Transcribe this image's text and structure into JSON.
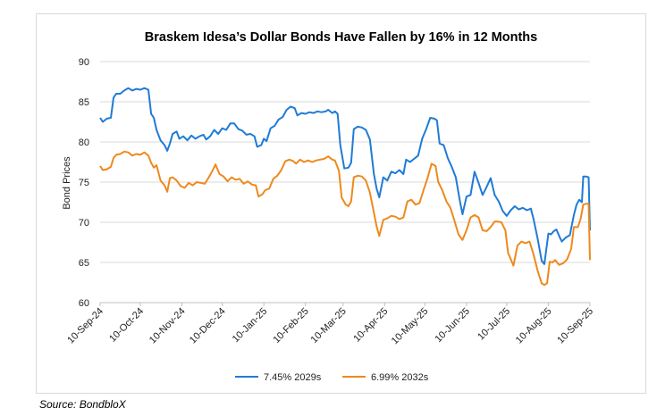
{
  "title": "Braskem Idesa’s Dollar Bonds Have Fallen by 16% in 12 Months",
  "source": "Source: BondbloX",
  "chart_data": {
    "type": "line",
    "title": "Braskem Idesa’s Dollar Bonds Have Fallen by 16% in 12 Months",
    "xlabel": "",
    "ylabel": "Bond Prices",
    "ylim": [
      60,
      90
    ],
    "yticks": [
      60,
      65,
      70,
      75,
      80,
      85,
      90
    ],
    "xlim": [
      "2024-09-10",
      "2025-09-10"
    ],
    "xticks": [
      "10-Sep-24",
      "10-Oct-24",
      "10-Nov-24",
      "10-Dec-24",
      "10-Jan-25",
      "10-Feb-25",
      "10-Mar-25",
      "10-Apr-25",
      "10-May-25",
      "10-Jun-25",
      "10-Jul-25",
      "10-Aug-25",
      "10-Sep-25"
    ],
    "grid": "horizontal",
    "legend": "bottom",
    "series": [
      {
        "name": "7.45% 2029s",
        "color": "#1f7bd6",
        "points": [
          [
            "2024-09-10",
            83.0
          ],
          [
            "2024-09-12",
            82.5
          ],
          [
            "2024-09-15",
            82.9
          ],
          [
            "2024-09-18",
            83.0
          ],
          [
            "2024-09-20",
            85.5
          ],
          [
            "2024-09-22",
            86.0
          ],
          [
            "2024-09-25",
            86.0
          ],
          [
            "2024-09-28",
            86.4
          ],
          [
            "2024-10-01",
            86.7
          ],
          [
            "2024-10-04",
            86.4
          ],
          [
            "2024-10-07",
            86.6
          ],
          [
            "2024-10-10",
            86.5
          ],
          [
            "2024-10-13",
            86.7
          ],
          [
            "2024-10-16",
            86.5
          ],
          [
            "2024-10-18",
            83.5
          ],
          [
            "2024-10-20",
            83.0
          ],
          [
            "2024-10-22",
            81.5
          ],
          [
            "2024-10-25",
            80.2
          ],
          [
            "2024-10-28",
            79.6
          ],
          [
            "2024-10-30",
            78.9
          ],
          [
            "2024-11-01",
            79.8
          ],
          [
            "2024-11-03",
            81.0
          ],
          [
            "2024-11-06",
            81.3
          ],
          [
            "2024-11-08",
            80.4
          ],
          [
            "2024-11-11",
            80.7
          ],
          [
            "2024-11-14",
            80.2
          ],
          [
            "2024-11-17",
            80.8
          ],
          [
            "2024-11-20",
            80.4
          ],
          [
            "2024-11-23",
            80.7
          ],
          [
            "2024-11-26",
            80.9
          ],
          [
            "2024-11-28",
            80.3
          ],
          [
            "2024-12-01",
            80.7
          ],
          [
            "2024-12-04",
            81.5
          ],
          [
            "2024-12-07",
            81.0
          ],
          [
            "2024-12-10",
            81.7
          ],
          [
            "2024-12-13",
            81.5
          ],
          [
            "2024-12-16",
            82.3
          ],
          [
            "2024-12-19",
            82.3
          ],
          [
            "2024-12-22",
            81.6
          ],
          [
            "2024-12-25",
            81.4
          ],
          [
            "2024-12-28",
            80.9
          ],
          [
            "2024-12-31",
            81.0
          ],
          [
            "2025-01-03",
            80.7
          ],
          [
            "2025-01-05",
            79.4
          ],
          [
            "2025-01-08",
            79.6
          ],
          [
            "2025-01-10",
            80.4
          ],
          [
            "2025-01-12",
            80.1
          ],
          [
            "2025-01-15",
            81.7
          ],
          [
            "2025-01-18",
            82.0
          ],
          [
            "2025-01-21",
            82.8
          ],
          [
            "2025-01-24",
            83.1
          ],
          [
            "2025-01-27",
            84.0
          ],
          [
            "2025-01-30",
            84.4
          ],
          [
            "2025-02-02",
            84.2
          ],
          [
            "2025-02-04",
            83.3
          ],
          [
            "2025-02-07",
            83.6
          ],
          [
            "2025-02-10",
            83.5
          ],
          [
            "2025-02-13",
            83.7
          ],
          [
            "2025-02-16",
            83.6
          ],
          [
            "2025-02-19",
            83.8
          ],
          [
            "2025-02-22",
            83.7
          ],
          [
            "2025-02-25",
            83.8
          ],
          [
            "2025-02-27",
            84.0
          ],
          [
            "2025-03-02",
            83.6
          ],
          [
            "2025-03-04",
            83.8
          ],
          [
            "2025-03-06",
            83.5
          ],
          [
            "2025-03-08",
            79.6
          ],
          [
            "2025-03-11",
            76.7
          ],
          [
            "2025-03-14",
            76.8
          ],
          [
            "2025-03-16",
            77.4
          ],
          [
            "2025-03-18",
            81.6
          ],
          [
            "2025-03-21",
            81.9
          ],
          [
            "2025-03-24",
            81.8
          ],
          [
            "2025-03-27",
            81.5
          ],
          [
            "2025-03-30",
            80.3
          ],
          [
            "2025-04-02",
            76.0
          ],
          [
            "2025-04-04",
            74.2
          ],
          [
            "2025-04-06",
            73.1
          ],
          [
            "2025-04-09",
            75.6
          ],
          [
            "2025-04-12",
            75.2
          ],
          [
            "2025-04-15",
            76.3
          ],
          [
            "2025-04-18",
            76.1
          ],
          [
            "2025-04-21",
            76.5
          ],
          [
            "2025-04-24",
            76.0
          ],
          [
            "2025-04-26",
            77.8
          ],
          [
            "2025-04-29",
            77.5
          ],
          [
            "2025-05-02",
            77.9
          ],
          [
            "2025-05-05",
            78.3
          ],
          [
            "2025-05-08",
            80.4
          ],
          [
            "2025-05-11",
            81.6
          ],
          [
            "2025-05-14",
            83.0
          ],
          [
            "2025-05-17",
            82.9
          ],
          [
            "2025-05-19",
            82.7
          ],
          [
            "2025-05-21",
            79.8
          ],
          [
            "2025-05-24",
            79.6
          ],
          [
            "2025-05-27",
            78.0
          ],
          [
            "2025-05-30",
            76.9
          ],
          [
            "2025-06-02",
            75.6
          ],
          [
            "2025-06-05",
            72.7
          ],
          [
            "2025-06-07",
            71.0
          ],
          [
            "2025-06-10",
            73.2
          ],
          [
            "2025-06-13",
            73.4
          ],
          [
            "2025-06-16",
            76.3
          ],
          [
            "2025-06-19",
            74.9
          ],
          [
            "2025-06-22",
            73.4
          ],
          [
            "2025-06-25",
            74.4
          ],
          [
            "2025-06-28",
            75.5
          ],
          [
            "2025-07-01",
            73.4
          ],
          [
            "2025-07-04",
            72.6
          ],
          [
            "2025-07-07",
            71.4
          ],
          [
            "2025-07-10",
            70.8
          ],
          [
            "2025-07-13",
            71.5
          ],
          [
            "2025-07-16",
            72.0
          ],
          [
            "2025-07-19",
            71.6
          ],
          [
            "2025-07-22",
            71.8
          ],
          [
            "2025-07-25",
            71.5
          ],
          [
            "2025-07-28",
            71.7
          ],
          [
            "2025-07-30",
            70.4
          ],
          [
            "2025-08-02",
            68.0
          ],
          [
            "2025-08-05",
            65.2
          ],
          [
            "2025-08-07",
            64.8
          ],
          [
            "2025-08-10",
            68.6
          ],
          [
            "2025-08-12",
            68.5
          ],
          [
            "2025-08-14",
            68.9
          ],
          [
            "2025-08-16",
            69.1
          ],
          [
            "2025-08-18",
            68.3
          ],
          [
            "2025-08-20",
            67.6
          ],
          [
            "2025-08-23",
            68.1
          ],
          [
            "2025-08-26",
            68.4
          ],
          [
            "2025-08-29",
            70.9
          ],
          [
            "2025-08-31",
            72.2
          ],
          [
            "2025-09-02",
            72.8
          ],
          [
            "2025-09-04",
            72.5
          ],
          [
            "2025-09-05",
            75.7
          ],
          [
            "2025-09-07",
            75.7
          ],
          [
            "2025-09-09",
            75.6
          ],
          [
            "2025-09-10",
            69.0
          ]
        ]
      },
      {
        "name": "6.99% 2032s",
        "color": "#ed8a1d",
        "points": [
          [
            "2024-09-10",
            77.0
          ],
          [
            "2024-09-12",
            76.5
          ],
          [
            "2024-09-15",
            76.6
          ],
          [
            "2024-09-18",
            76.9
          ],
          [
            "2024-09-20",
            78.0
          ],
          [
            "2024-09-22",
            78.4
          ],
          [
            "2024-09-25",
            78.5
          ],
          [
            "2024-09-28",
            78.8
          ],
          [
            "2024-10-01",
            78.7
          ],
          [
            "2024-10-04",
            78.3
          ],
          [
            "2024-10-07",
            78.5
          ],
          [
            "2024-10-10",
            78.4
          ],
          [
            "2024-10-13",
            78.7
          ],
          [
            "2024-10-16",
            78.3
          ],
          [
            "2024-10-18",
            77.4
          ],
          [
            "2024-10-20",
            76.8
          ],
          [
            "2024-10-22",
            77.1
          ],
          [
            "2024-10-25",
            75.2
          ],
          [
            "2024-10-28",
            74.6
          ],
          [
            "2024-10-30",
            73.8
          ],
          [
            "2024-11-01",
            75.5
          ],
          [
            "2024-11-03",
            75.6
          ],
          [
            "2024-11-06",
            75.2
          ],
          [
            "2024-11-09",
            74.5
          ],
          [
            "2024-11-12",
            74.3
          ],
          [
            "2024-11-15",
            74.9
          ],
          [
            "2024-11-18",
            74.6
          ],
          [
            "2024-11-21",
            75.0
          ],
          [
            "2024-11-24",
            74.9
          ],
          [
            "2024-11-27",
            74.8
          ],
          [
            "2024-11-30",
            75.6
          ],
          [
            "2024-12-03",
            76.5
          ],
          [
            "2024-12-05",
            77.2
          ],
          [
            "2024-12-08",
            76.0
          ],
          [
            "2024-12-11",
            75.7
          ],
          [
            "2024-12-14",
            75.1
          ],
          [
            "2024-12-17",
            75.6
          ],
          [
            "2024-12-20",
            75.3
          ],
          [
            "2024-12-23",
            75.4
          ],
          [
            "2024-12-26",
            74.8
          ],
          [
            "2024-12-29",
            75.1
          ],
          [
            "2025-01-01",
            74.7
          ],
          [
            "2025-01-04",
            74.6
          ],
          [
            "2025-01-06",
            73.2
          ],
          [
            "2025-01-09",
            73.5
          ],
          [
            "2025-01-11",
            74.0
          ],
          [
            "2025-01-14",
            74.2
          ],
          [
            "2025-01-17",
            75.4
          ],
          [
            "2025-01-20",
            75.8
          ],
          [
            "2025-01-23",
            76.5
          ],
          [
            "2025-01-26",
            77.6
          ],
          [
            "2025-01-29",
            77.8
          ],
          [
            "2025-02-01",
            77.6
          ],
          [
            "2025-02-03",
            77.3
          ],
          [
            "2025-02-06",
            77.8
          ],
          [
            "2025-02-09",
            77.5
          ],
          [
            "2025-02-12",
            77.7
          ],
          [
            "2025-02-15",
            77.5
          ],
          [
            "2025-02-18",
            77.7
          ],
          [
            "2025-02-21",
            77.8
          ],
          [
            "2025-02-24",
            77.9
          ],
          [
            "2025-02-27",
            78.2
          ],
          [
            "2025-03-02",
            77.8
          ],
          [
            "2025-03-04",
            77.7
          ],
          [
            "2025-03-07",
            76.4
          ],
          [
            "2025-03-09",
            73.1
          ],
          [
            "2025-03-12",
            72.2
          ],
          [
            "2025-03-14",
            72.0
          ],
          [
            "2025-03-16",
            72.6
          ],
          [
            "2025-03-18",
            75.6
          ],
          [
            "2025-03-21",
            75.8
          ],
          [
            "2025-03-24",
            75.7
          ],
          [
            "2025-03-27",
            75.2
          ],
          [
            "2025-03-30",
            73.7
          ],
          [
            "2025-04-02",
            71.2
          ],
          [
            "2025-04-04",
            69.5
          ],
          [
            "2025-04-06",
            68.3
          ],
          [
            "2025-04-09",
            70.3
          ],
          [
            "2025-04-12",
            70.5
          ],
          [
            "2025-04-15",
            70.8
          ],
          [
            "2025-04-18",
            70.7
          ],
          [
            "2025-04-21",
            70.4
          ],
          [
            "2025-04-24",
            70.6
          ],
          [
            "2025-04-27",
            72.6
          ],
          [
            "2025-04-30",
            72.8
          ],
          [
            "2025-05-03",
            72.2
          ],
          [
            "2025-05-06",
            72.4
          ],
          [
            "2025-05-09",
            74.0
          ],
          [
            "2025-05-12",
            75.5
          ],
          [
            "2025-05-15",
            77.3
          ],
          [
            "2025-05-18",
            77.0
          ],
          [
            "2025-05-20",
            75.0
          ],
          [
            "2025-05-23",
            74.0
          ],
          [
            "2025-05-26",
            72.6
          ],
          [
            "2025-05-29",
            71.8
          ],
          [
            "2025-06-01",
            70.2
          ],
          [
            "2025-06-04",
            68.5
          ],
          [
            "2025-06-07",
            67.8
          ],
          [
            "2025-06-10",
            69.0
          ],
          [
            "2025-06-13",
            70.6
          ],
          [
            "2025-06-16",
            70.9
          ],
          [
            "2025-06-19",
            70.6
          ],
          [
            "2025-06-22",
            69.0
          ],
          [
            "2025-06-25",
            68.9
          ],
          [
            "2025-06-28",
            69.4
          ],
          [
            "2025-07-01",
            70.1
          ],
          [
            "2025-07-03",
            70.1
          ],
          [
            "2025-07-06",
            70.0
          ],
          [
            "2025-07-09",
            69.0
          ],
          [
            "2025-07-11",
            66.2
          ],
          [
            "2025-07-13",
            65.4
          ],
          [
            "2025-07-15",
            64.6
          ],
          [
            "2025-07-18",
            67.1
          ],
          [
            "2025-07-21",
            67.6
          ],
          [
            "2025-07-24",
            67.4
          ],
          [
            "2025-07-27",
            67.6
          ],
          [
            "2025-07-30",
            66.0
          ],
          [
            "2025-08-02",
            64.0
          ],
          [
            "2025-08-05",
            62.4
          ],
          [
            "2025-08-07",
            62.2
          ],
          [
            "2025-08-09",
            62.4
          ],
          [
            "2025-08-11",
            65.1
          ],
          [
            "2025-08-13",
            65.0
          ],
          [
            "2025-08-15",
            65.3
          ],
          [
            "2025-08-18",
            64.7
          ],
          [
            "2025-08-21",
            64.9
          ],
          [
            "2025-08-24",
            65.4
          ],
          [
            "2025-08-27",
            66.7
          ],
          [
            "2025-08-29",
            69.4
          ],
          [
            "2025-09-01",
            69.4
          ],
          [
            "2025-09-03",
            70.4
          ],
          [
            "2025-09-05",
            72.2
          ],
          [
            "2025-09-07",
            72.3
          ],
          [
            "2025-09-09",
            72.3
          ],
          [
            "2025-09-10",
            65.3
          ]
        ]
      }
    ]
  }
}
